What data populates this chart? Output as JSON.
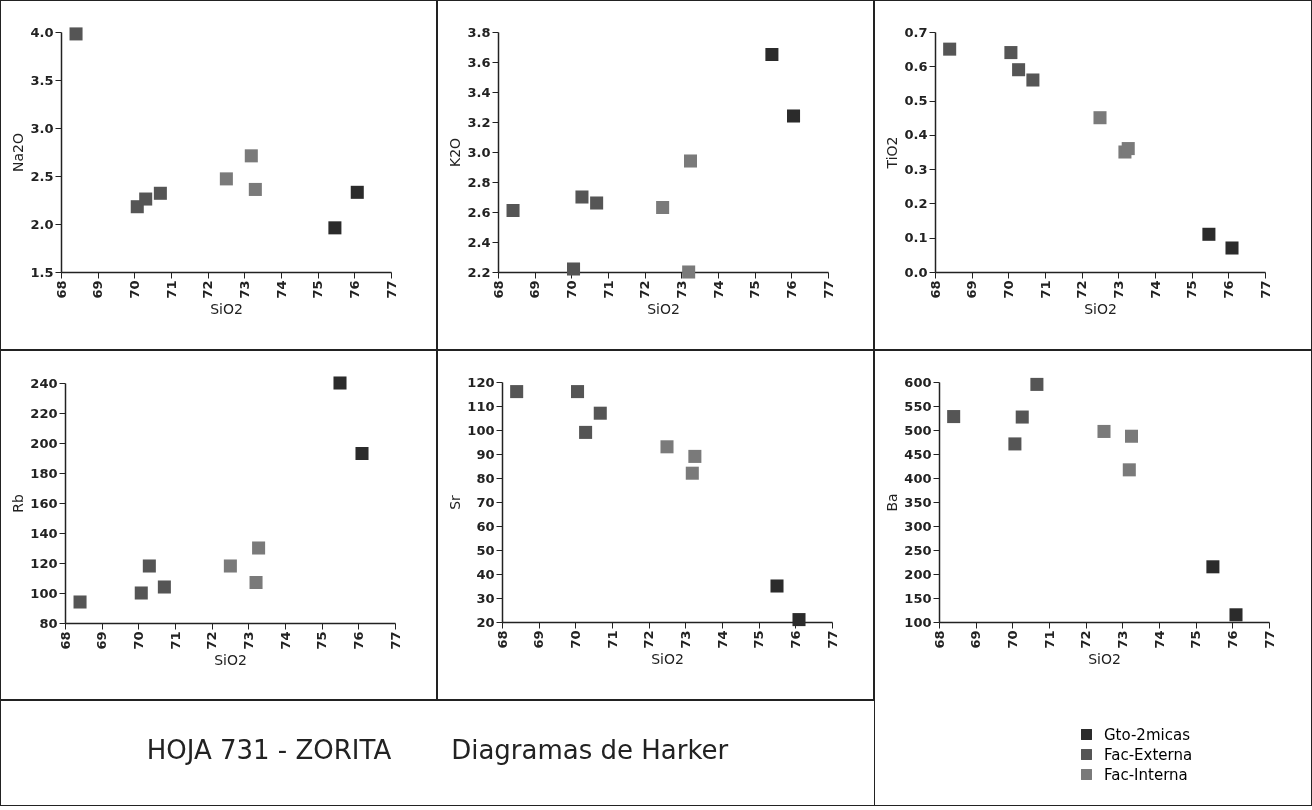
{
  "chart_data": [
    {
      "type": "scatter",
      "xlabel": "SiO2",
      "ylabel": "Na2O",
      "xlim": [
        68,
        77
      ],
      "xticks": [
        68,
        69,
        70,
        71,
        72,
        73,
        74,
        75,
        76,
        77
      ],
      "ylim": [
        1.5,
        4.0
      ],
      "yticks": [
        1.5,
        {
          "value": 2,
          "label": "2.0"
        },
        2.5,
        {
          "value": 3,
          "label": "3.0"
        },
        3.5,
        {
          "value": 4,
          "label": "4.0"
        }
      ],
      "marker": "square",
      "series": [
        {
          "color": "#2b2b2b",
          "x": [
            75.47,
            76.08
          ],
          "values": [
            1.96,
            2.33
          ]
        },
        {
          "color": "#555555",
          "x": [
            68.41,
            70.08,
            70.31,
            70.71
          ],
          "values": [
            3.98,
            2.18,
            2.26,
            2.32
          ]
        },
        {
          "color": "#7a7a7a",
          "x": [
            72.51,
            73.19,
            73.3
          ],
          "values": [
            2.47,
            2.71,
            2.36
          ]
        }
      ]
    },
    {
      "type": "scatter",
      "xlabel": "SiO2",
      "ylabel": "K2O",
      "xlim": [
        68,
        77
      ],
      "xticks": [
        68,
        69,
        70,
        71,
        72,
        73,
        74,
        75,
        76,
        77
      ],
      "ylim": [
        2.2,
        3.8
      ],
      "yticks": [
        2.2,
        2.4,
        2.6,
        2.8,
        {
          "value": 3,
          "label": "3.0"
        },
        3.2,
        3.4,
        3.6,
        3.8
      ],
      "marker": "square",
      "series": [
        {
          "color": "#2b2b2b",
          "x": [
            75.47,
            76.06
          ],
          "values": [
            3.65,
            3.24
          ]
        },
        {
          "color": "#555555",
          "x": [
            68.41,
            70.06,
            70.29,
            70.69
          ],
          "values": [
            2.61,
            2.22,
            2.7,
            2.66
          ]
        },
        {
          "color": "#7a7a7a",
          "x": [
            72.49,
            73.2,
            73.25
          ],
          "values": [
            2.63,
            2.2,
            2.94
          ]
        }
      ]
    },
    {
      "type": "scatter",
      "xlabel": "SiO2",
      "ylabel": "TiO2",
      "xlim": [
        68,
        77
      ],
      "xticks": [
        68,
        69,
        70,
        71,
        72,
        73,
        74,
        75,
        76,
        77
      ],
      "ylim": [
        0.0,
        0.7
      ],
      "yticks": [
        {
          "value": 0,
          "label": "0.0"
        },
        0.1,
        0.2,
        0.3,
        0.4,
        0.5,
        0.6,
        0.7
      ],
      "marker": "square",
      "series": [
        {
          "color": "#2b2b2b",
          "x": [
            75.47,
            76.1
          ],
          "values": [
            0.11,
            0.07
          ]
        },
        {
          "color": "#555555",
          "x": [
            68.4,
            70.07,
            70.28,
            70.67
          ],
          "values": [
            0.65,
            0.64,
            0.59,
            0.56
          ]
        },
        {
          "color": "#7a7a7a",
          "x": [
            72.5,
            73.18,
            73.27
          ],
          "values": [
            0.45,
            0.35,
            0.36
          ]
        }
      ]
    },
    {
      "type": "scatter",
      "xlabel": "SiO2",
      "ylabel": "Rb",
      "xlim": [
        68,
        77
      ],
      "xticks": [
        68,
        69,
        70,
        71,
        72,
        73,
        74,
        75,
        76,
        77
      ],
      "ylim": [
        80,
        240
      ],
      "yticks": [
        80,
        100,
        120,
        140,
        160,
        180,
        200,
        220,
        240
      ],
      "marker": "square",
      "series": [
        {
          "color": "#2b2b2b",
          "x": [
            75.5,
            76.1
          ],
          "values": [
            240,
            193
          ]
        },
        {
          "color": "#555555",
          "x": [
            68.41,
            70.08,
            70.3,
            70.71
          ],
          "values": [
            94,
            100,
            118,
            104
          ]
        },
        {
          "color": "#7a7a7a",
          "x": [
            72.51,
            73.21,
            73.28
          ],
          "values": [
            118,
            107,
            130
          ]
        }
      ]
    },
    {
      "type": "scatter",
      "xlabel": "SiO2",
      "ylabel": "Sr",
      "xlim": [
        68,
        77
      ],
      "xticks": [
        68,
        69,
        70,
        71,
        72,
        73,
        74,
        75,
        76,
        77
      ],
      "ylim": [
        20,
        120
      ],
      "yticks": [
        20,
        30,
        40,
        50,
        60,
        70,
        80,
        90,
        100,
        110,
        120
      ],
      "marker": "square",
      "series": [
        {
          "color": "#2b2b2b",
          "x": [
            75.5,
            76.1
          ],
          "values": [
            35,
            21
          ]
        },
        {
          "color": "#555555",
          "x": [
            68.4,
            70.06,
            70.28,
            70.68
          ],
          "values": [
            116,
            116,
            99,
            107
          ]
        },
        {
          "color": "#7a7a7a",
          "x": [
            72.5,
            73.19,
            73.26
          ],
          "values": [
            93,
            82,
            89
          ]
        }
      ]
    },
    {
      "type": "scatter",
      "xlabel": "SiO2",
      "ylabel": "Ba",
      "xlim": [
        68,
        77
      ],
      "xticks": [
        68,
        69,
        70,
        71,
        72,
        73,
        74,
        75,
        76,
        77
      ],
      "ylim": [
        100,
        600
      ],
      "yticks": [
        100,
        150,
        200,
        250,
        300,
        350,
        400,
        450,
        500,
        550,
        600
      ],
      "marker": "square",
      "legend": "bottom right",
      "series": [
        {
          "name": "Gto-2micas",
          "color": "#2b2b2b",
          "x": [
            75.47,
            76.1
          ],
          "values": [
            215,
            115
          ]
        },
        {
          "name": "Fac-Externa",
          "color": "#555555",
          "x": [
            68.4,
            70.07,
            70.27,
            70.67
          ],
          "values": [
            528,
            471,
            527,
            595
          ]
        },
        {
          "name": "Fac-Interna",
          "color": "#7a7a7a",
          "x": [
            72.5,
            73.19,
            73.25
          ],
          "values": [
            497,
            417,
            487
          ]
        }
      ]
    },
    {
      "type": "other",
      "title": "HOJA 731 - ZORITA",
      "subtitle": "Diagramas de Harker"
    }
  ]
}
